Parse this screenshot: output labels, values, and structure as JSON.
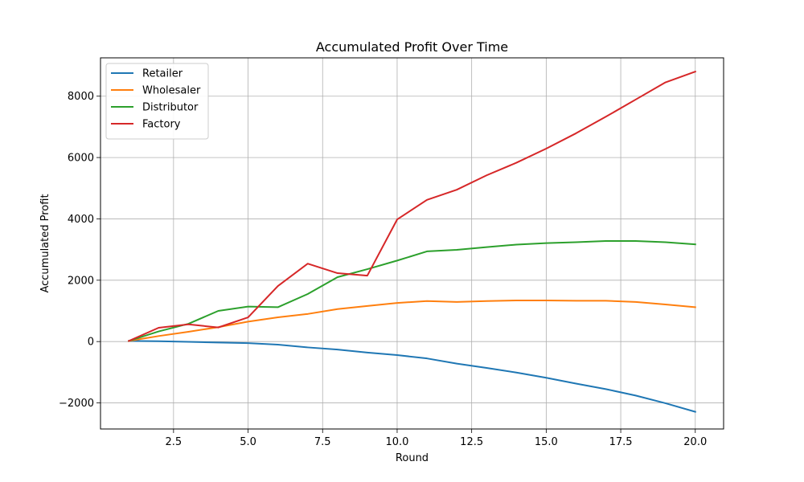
{
  "chart_data": {
    "type": "line",
    "title": "Accumulated Profit Over Time",
    "xlabel": "Round",
    "ylabel": "Accumulated Profit",
    "xlim": [
      0.05,
      20.95
    ],
    "ylim": [
      -2850,
      9250
    ],
    "xticks": [
      2.5,
      5.0,
      7.5,
      10.0,
      12.5,
      15.0,
      17.5,
      20.0
    ],
    "xtick_labels": [
      "2.5",
      "5.0",
      "7.5",
      "10.0",
      "12.5",
      "15.0",
      "17.5",
      "20.0"
    ],
    "yticks": [
      -2000,
      0,
      2000,
      4000,
      6000,
      8000
    ],
    "ytick_labels": [
      "−2000",
      "0",
      "2000",
      "4000",
      "6000",
      "8000"
    ],
    "grid": true,
    "legend_position": "top-left",
    "x": [
      1,
      2,
      3,
      4,
      5,
      6,
      7,
      8,
      9,
      10,
      11,
      12,
      13,
      14,
      15,
      16,
      17,
      18,
      19,
      20
    ],
    "series": [
      {
        "name": "Retailer",
        "color": "#1f77b4",
        "values": [
          20,
          10,
          -10,
          -30,
          -50,
          -100,
          -190,
          -260,
          -360,
          -440,
          -550,
          -720,
          -860,
          -1010,
          -1180,
          -1370,
          -1550,
          -1760,
          -2010,
          -2290
        ]
      },
      {
        "name": "Wholesaler",
        "color": "#ff7f0e",
        "values": [
          20,
          180,
          320,
          470,
          650,
          790,
          900,
          1060,
          1160,
          1260,
          1320,
          1290,
          1320,
          1340,
          1340,
          1330,
          1330,
          1290,
          1210,
          1120
        ]
      },
      {
        "name": "Distributor",
        "color": "#2ca02c",
        "values": [
          20,
          330,
          580,
          1000,
          1140,
          1120,
          1550,
          2100,
          2360,
          2640,
          2940,
          2990,
          3080,
          3160,
          3210,
          3240,
          3280,
          3280,
          3240,
          3170
        ]
      },
      {
        "name": "Factory",
        "color": "#d62728",
        "values": [
          20,
          450,
          560,
          460,
          790,
          1810,
          2540,
          2230,
          2150,
          3980,
          4620,
          4950,
          5420,
          5830,
          6290,
          6790,
          7330,
          7890,
          8450,
          8800
        ]
      }
    ]
  }
}
